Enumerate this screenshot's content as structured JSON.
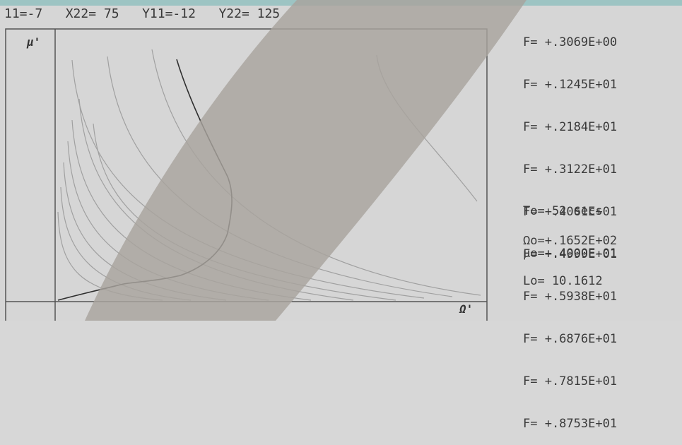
{
  "header": {
    "x11": "11=-7",
    "x22": "X22= 75",
    "y11": "Y11=-12",
    "y22": "Y22= 125"
  },
  "f_values": [
    "F= +.3069E+00",
    "F= +.1245E+01",
    "F= +.2184E+01",
    "F= +.3122E+01",
    "F= +.4061E+01",
    "F= +.4999E+01",
    "F= +.5938E+01",
    "F= +.6876E+01",
    "F= +.7815E+01",
    "F= +.8753E+01"
  ],
  "readouts": {
    "to": "To= 52 secs",
    "omega0": "Ωo=+.1652E+02",
    "mu0": "μo=+.4000E-01",
    "lo": "Lo= 10.1612"
  },
  "axes": {
    "y_label": "μ'",
    "x_label": "Ω'"
  },
  "colors": {
    "screen": "#d6d6d6",
    "frame": "#555555",
    "curves": "#a0a0a0",
    "trajectory": "#2f2f2f",
    "glare": "#a8a39e"
  }
}
